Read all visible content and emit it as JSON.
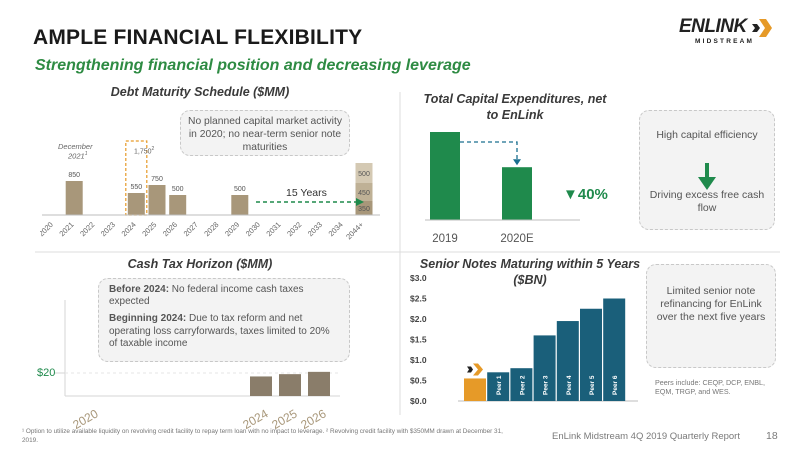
{
  "title": "AMPLE FINANCIAL FLEXIBILITY",
  "subtitle": "Strengthening financial position and decreasing leverage",
  "logo": {
    "wordmark": "ENLINK",
    "tagline": "MIDSTREAM"
  },
  "debt_panel": {
    "title": "Debt Maturity Schedule ($MM)",
    "callout": "No planned capital market activity in 2020; no near-term senior note maturities",
    "december_label": "December",
    "december_year": "2021",
    "december_sup": "1",
    "revolver_label": "1,750",
    "revolver_sup": "2",
    "years_label": "15 Years"
  },
  "capex_panel": {
    "title": "Total Capital Expenditures, net to EnLink",
    "change_label": "▼40%",
    "callout_top": "High capital efficiency",
    "callout_bottom": "Driving excess free cash flow"
  },
  "tax_panel": {
    "title": "Cash Tax Horizon ($MM)",
    "note1_bold": "Before 2024:",
    "note1_text": " No federal income cash taxes expected",
    "note2_bold": "Beginning 2024:",
    "note2_text": " Due to tax reform and net operating loss carryforwards, taxes limited to 20% of taxable income",
    "y_label": "$20"
  },
  "notes_panel": {
    "title": "Senior Notes Maturing within 5 Years ($BN)",
    "callout": "Limited senior note refinancing for EnLink over the next five years",
    "peers_note": "Peers include: CEQP, DCP, ENBL, EQM, TRGP, and WES."
  },
  "chart_data": [
    {
      "type": "bar",
      "title": "Debt Maturity Schedule ($MM)",
      "categories": [
        "2020",
        "2021",
        "2022",
        "2023",
        "2024",
        "2025",
        "2026",
        "2027",
        "2028",
        "2029",
        "2030",
        "2031",
        "2032",
        "2033",
        "2034",
        "2044+"
      ],
      "series": [
        {
          "values": [
            null,
            850,
            null,
            null,
            550,
            750,
            500,
            null,
            null,
            500,
            null,
            null,
            null,
            null,
            null,
            350
          ]
        },
        {
          "values": [
            null,
            null,
            null,
            null,
            null,
            null,
            null,
            null,
            null,
            null,
            null,
            null,
            null,
            null,
            null,
            450
          ]
        },
        {
          "values": [
            null,
            null,
            null,
            null,
            null,
            null,
            null,
            null,
            null,
            null,
            null,
            null,
            null,
            null,
            null,
            500
          ]
        }
      ],
      "data_labels": [
        "850",
        "550",
        "750",
        "500",
        "500",
        "350",
        "450",
        "500"
      ],
      "revolver_outline": {
        "category": "2024",
        "value": 1750
      }
    },
    {
      "type": "bar",
      "title": "Total Capital Expenditures, net to EnLink",
      "categories": [
        "2019",
        "2020E"
      ],
      "values": [
        1.0,
        0.6
      ]
    },
    {
      "type": "bar",
      "title": "Cash Tax Horizon ($MM)",
      "categories": [
        "2020",
        "2024",
        "2025",
        "2026"
      ],
      "values": [
        0,
        17,
        19,
        21
      ],
      "ylabel_tick": "$20"
    },
    {
      "type": "bar",
      "title": "Senior Notes Maturing within 5 Years ($BN)",
      "categories": [
        "EnLink",
        "Peer 1",
        "Peer 2",
        "Peer 3",
        "Peer 4",
        "Peer 5",
        "Peer 6"
      ],
      "values": [
        0.55,
        0.7,
        0.8,
        1.6,
        1.95,
        2.25,
        2.5
      ],
      "y_ticks": [
        "$0.0",
        "$0.5",
        "$1.0",
        "$1.5",
        "$2.0",
        "$2.5",
        "$3.0"
      ],
      "ylim": [
        0,
        3.0
      ]
    }
  ],
  "footnote": "¹ Option to utilize available liquidity on revolving credit facility to repay term loan with no impact to leverage. ² Revolving credit facility with $350MM drawn at December 31, 2019.",
  "footer": "EnLink Midstream 4Q 2019 Quarterly Report",
  "page_number": "18",
  "colors": {
    "gold": "#a8977a",
    "green": "#1f8a4c",
    "teal": "#1a5f7a",
    "orange": "#e69a28",
    "title_green": "#2e8b43"
  }
}
